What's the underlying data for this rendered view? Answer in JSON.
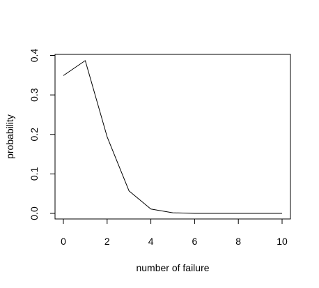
{
  "chart_data": {
    "type": "line",
    "title": "",
    "xlabel": "number of failure",
    "ylabel": "probability",
    "x": [
      0,
      1,
      2,
      3,
      4,
      5,
      6,
      7,
      8,
      9,
      10
    ],
    "series": [
      {
        "values": [
          0.349,
          0.387,
          0.194,
          0.057,
          0.011,
          0.0015,
          0.0001,
          0.0,
          0.0,
          0.0,
          0.0
        ],
        "color": "#000000"
      }
    ],
    "xlim": [
      0,
      10
    ],
    "ylim": [
      0,
      0.4
    ],
    "xticks": [
      "0",
      "2",
      "4",
      "6",
      "8",
      "10"
    ],
    "yticks": [
      "0.0",
      "0.1",
      "0.2",
      "0.3",
      "0.4"
    ],
    "grid": false,
    "legend": "none",
    "box": true
  }
}
